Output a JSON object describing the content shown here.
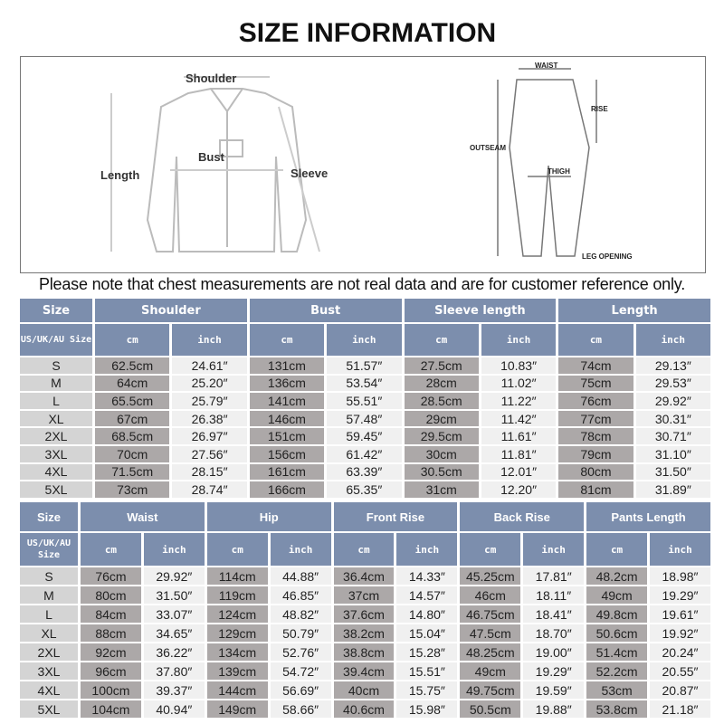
{
  "title": "SIZE INFORMATION",
  "note": "Please note that chest measurements are not real data and are for customer reference only.",
  "diagram": {
    "shirt_labels": {
      "shoulder": "Shoulder",
      "bust": "Bust",
      "length": "Length",
      "sleeve": "Sleeve"
    },
    "pants_labels": {
      "waist": "WAIST",
      "rise": "RISE",
      "outseam": "OUTSEAM",
      "thigh": "THIGH",
      "leg_opening": "LEG OPENING"
    }
  },
  "unit_labels": {
    "cm": "cm",
    "inch": "inch",
    "size_sub": "US/UK/AU Size"
  },
  "top_table": {
    "size_header": "Size",
    "groups": [
      "Shoulder",
      "Bust",
      "Sleeve length",
      "Length"
    ],
    "rows": [
      [
        "S",
        "62.5cm",
        "24.61″",
        "131cm",
        "51.57″",
        "27.5cm",
        "10.83″",
        "74cm",
        "29.13″"
      ],
      [
        "M",
        "64cm",
        "25.20″",
        "136cm",
        "53.54″",
        "28cm",
        "11.02″",
        "75cm",
        "29.53″"
      ],
      [
        "L",
        "65.5cm",
        "25.79″",
        "141cm",
        "55.51″",
        "28.5cm",
        "11.22″",
        "76cm",
        "29.92″"
      ],
      [
        "XL",
        "67cm",
        "26.38″",
        "146cm",
        "57.48″",
        "29cm",
        "11.42″",
        "77cm",
        "30.31″"
      ],
      [
        "2XL",
        "68.5cm",
        "26.97″",
        "151cm",
        "59.45″",
        "29.5cm",
        "11.61″",
        "78cm",
        "30.71″"
      ],
      [
        "3XL",
        "70cm",
        "27.56″",
        "156cm",
        "61.42″",
        "30cm",
        "11.81″",
        "79cm",
        "31.10″"
      ],
      [
        "4XL",
        "71.5cm",
        "28.15″",
        "161cm",
        "63.39″",
        "30.5cm",
        "12.01″",
        "80cm",
        "31.50″"
      ],
      [
        "5XL",
        "73cm",
        "28.74″",
        "166cm",
        "65.35″",
        "31cm",
        "12.20″",
        "81cm",
        "31.89″"
      ]
    ]
  },
  "bottom_table": {
    "size_header": "Size",
    "groups": [
      "Waist",
      "Hip",
      "Front Rise",
      "Back Rise",
      "Pants Length"
    ],
    "rows": [
      [
        "S",
        "76cm",
        "29.92″",
        "114cm",
        "44.88″",
        "36.4cm",
        "14.33″",
        "45.25cm",
        "17.81″",
        "48.2cm",
        "18.98″"
      ],
      [
        "M",
        "80cm",
        "31.50″",
        "119cm",
        "46.85″",
        "37cm",
        "14.57″",
        "46cm",
        "18.11″",
        "49cm",
        "19.29″"
      ],
      [
        "L",
        "84cm",
        "33.07″",
        "124cm",
        "48.82″",
        "37.6cm",
        "14.80″",
        "46.75cm",
        "18.41″",
        "49.8cm",
        "19.61″"
      ],
      [
        "XL",
        "88cm",
        "34.65″",
        "129cm",
        "50.79″",
        "38.2cm",
        "15.04″",
        "47.5cm",
        "18.70″",
        "50.6cm",
        "19.92″"
      ],
      [
        "2XL",
        "92cm",
        "36.22″",
        "134cm",
        "52.76″",
        "38.8cm",
        "15.28″",
        "48.25cm",
        "19.00″",
        "51.4cm",
        "20.24″"
      ],
      [
        "3XL",
        "96cm",
        "37.80″",
        "139cm",
        "54.72″",
        "39.4cm",
        "15.51″",
        "49cm",
        "19.29″",
        "52.2cm",
        "20.55″"
      ],
      [
        "4XL",
        "100cm",
        "39.37″",
        "144cm",
        "56.69″",
        "40cm",
        "15.75″",
        "49.75cm",
        "19.59″",
        "53cm",
        "20.87″"
      ],
      [
        "5XL",
        "104cm",
        "40.94″",
        "149cm",
        "58.66″",
        "40.6cm",
        "15.98″",
        "50.5cm",
        "19.88″",
        "53.8cm",
        "21.18″"
      ]
    ]
  },
  "colors": {
    "header": "#7c8ead",
    "cm_cell": "#aca8a8",
    "inch_cell": "#f0f0f0",
    "size_cell": "#d4d4d4"
  }
}
